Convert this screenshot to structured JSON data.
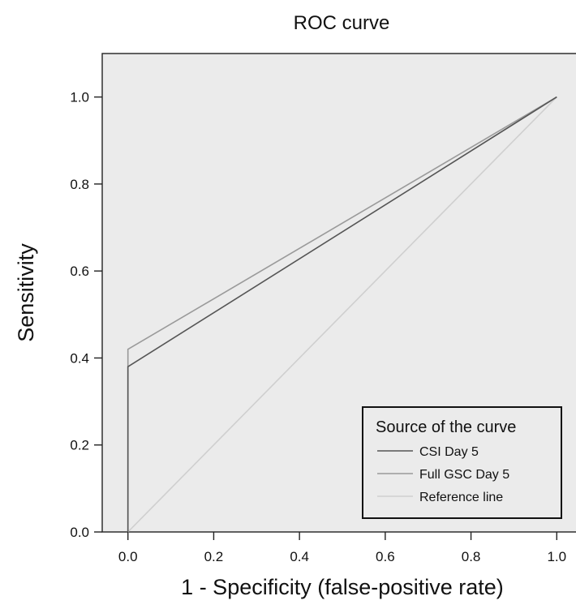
{
  "chart_data": {
    "type": "line",
    "title": "ROC curve",
    "xlabel": "1 - Specificity (false-positive rate)",
    "ylabel": "Sensitivity",
    "xlim": [
      -0.06,
      1.06
    ],
    "ylim": [
      0.0,
      1.1
    ],
    "xticks": [
      0.0,
      0.2,
      0.4,
      0.6,
      0.8,
      1.0
    ],
    "yticks": [
      0.0,
      0.2,
      0.4,
      0.6,
      0.8,
      1.0
    ],
    "tick_labels": [
      "0.0",
      "0.2",
      "0.4",
      "0.6",
      "0.8",
      "1.0"
    ],
    "grid": false,
    "background": "#ebebeb",
    "legend": {
      "title": "Source of the curve",
      "position": "bottom-right"
    },
    "series": [
      {
        "name": "CSI Day 5",
        "color": "#555555",
        "x": [
          0.0,
          0.0,
          1.0
        ],
        "y": [
          0.0,
          0.38,
          1.0
        ]
      },
      {
        "name": "Full GSC Day 5",
        "color": "#9a9a9a",
        "x": [
          0.0,
          0.0,
          1.0
        ],
        "y": [
          0.0,
          0.42,
          1.0
        ]
      },
      {
        "name": "Reference line",
        "color": "#cfcfcf",
        "x": [
          0.0,
          1.0
        ],
        "y": [
          0.0,
          1.0
        ]
      }
    ]
  }
}
